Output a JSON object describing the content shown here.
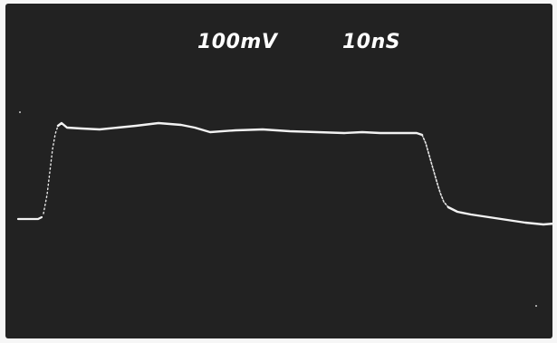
{
  "readout": {
    "volts_per_div": "100mV",
    "time_per_div": "10nS"
  },
  "colors": {
    "screen_background": "#222222",
    "trace": "#f2f2f2",
    "text": "#ffffff",
    "border": "#f6f6f6"
  }
}
